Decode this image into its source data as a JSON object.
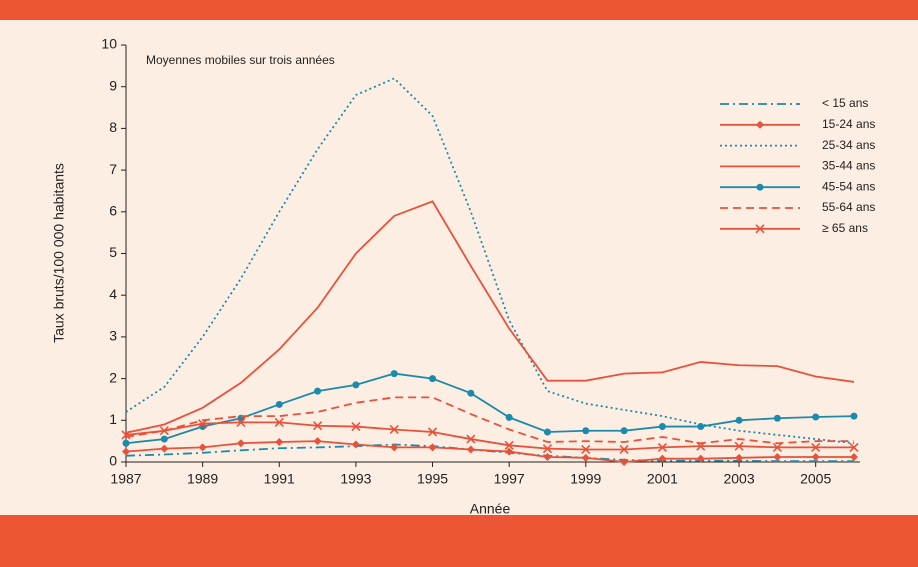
{
  "chart_data": {
    "type": "line",
    "annotation": "Moyennes mobiles sur trois années",
    "xlabel": "Année",
    "ylabel": "Taux bruts/100 000 habitants",
    "x": [
      1987,
      1988,
      1989,
      1990,
      1991,
      1992,
      1993,
      1994,
      1995,
      1996,
      1997,
      1998,
      1999,
      2000,
      2001,
      2002,
      2003,
      2004,
      2005,
      2006
    ],
    "xlim": [
      1987,
      2006
    ],
    "xticks": [
      1987,
      1989,
      1991,
      1993,
      1995,
      1997,
      1999,
      2001,
      2003,
      2005
    ],
    "ylim": [
      0,
      10
    ],
    "yticks": [
      0,
      1,
      2,
      3,
      4,
      5,
      6,
      7,
      8,
      9,
      10
    ],
    "legend": "upper right",
    "series": [
      {
        "name": "< 15 ans",
        "color": "#1b8aab",
        "dash": "dashdot",
        "marker": "none",
        "values": [
          0.15,
          0.18,
          0.22,
          0.28,
          0.33,
          0.35,
          0.38,
          0.42,
          0.38,
          0.3,
          0.22,
          0.15,
          0.1,
          0.05,
          0.03,
          0.03,
          0.03,
          0.02,
          0.02,
          0.02
        ]
      },
      {
        "name": "15-24 ans",
        "color": "#e8523a",
        "dash": "solid",
        "marker": "diamond",
        "values": [
          0.25,
          0.32,
          0.35,
          0.45,
          0.48,
          0.5,
          0.42,
          0.35,
          0.35,
          0.3,
          0.25,
          0.12,
          0.1,
          0.0,
          0.08,
          0.08,
          0.1,
          0.12,
          0.12,
          0.12
        ]
      },
      {
        "name": "25-34 ans",
        "color": "#1b8aab",
        "dash": "dotted",
        "marker": "none",
        "values": [
          1.2,
          1.8,
          3.0,
          4.4,
          6.0,
          7.5,
          8.8,
          9.2,
          8.3,
          6.0,
          3.4,
          1.7,
          1.4,
          1.25,
          1.1,
          0.9,
          0.75,
          0.65,
          0.55,
          0.45
        ]
      },
      {
        "name": "35-44 ans",
        "color": "#e8523a",
        "dash": "solid",
        "marker": "none",
        "values": [
          0.7,
          0.9,
          1.3,
          1.9,
          2.7,
          3.7,
          5.0,
          5.9,
          6.25,
          4.7,
          3.2,
          1.95,
          1.95,
          2.12,
          2.15,
          2.4,
          2.32,
          2.3,
          2.05,
          1.92
        ]
      },
      {
        "name": "45-54 ans",
        "color": "#1b8aab",
        "dash": "solid",
        "marker": "circle",
        "values": [
          0.45,
          0.55,
          0.85,
          1.05,
          1.38,
          1.7,
          1.85,
          2.12,
          2.0,
          1.65,
          1.07,
          0.72,
          0.75,
          0.75,
          0.85,
          0.85,
          1.0,
          1.05,
          1.08,
          1.1
        ]
      },
      {
        "name": "55-64 ans",
        "color": "#e8523a",
        "dash": "dashed",
        "marker": "none",
        "values": [
          0.6,
          0.75,
          1.0,
          1.1,
          1.1,
          1.2,
          1.42,
          1.55,
          1.55,
          1.15,
          0.78,
          0.48,
          0.5,
          0.48,
          0.6,
          0.45,
          0.55,
          0.45,
          0.5,
          0.5
        ]
      },
      {
        "name": "≥ 65 ans",
        "color": "#e8523a",
        "dash": "solid",
        "marker": "x",
        "values": [
          0.65,
          0.75,
          0.92,
          0.95,
          0.95,
          0.87,
          0.85,
          0.78,
          0.72,
          0.55,
          0.4,
          0.32,
          0.3,
          0.3,
          0.35,
          0.38,
          0.38,
          0.35,
          0.35,
          0.35
        ]
      }
    ]
  }
}
